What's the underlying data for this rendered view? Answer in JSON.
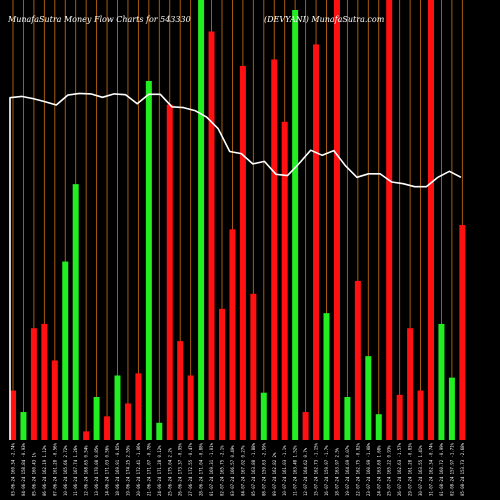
{
  "header": {
    "left": "MunafaSutra  Money Flow  Charts for 543330",
    "right": "(DEVYANI) MunafaSutra.com"
  },
  "chart_data": {
    "type": "bar",
    "title": "MunafaSutra  Money Flow  Charts for 543330",
    "colors": {
      "up": "#22ee22",
      "down": "#ff1111",
      "grid": "#b8650f",
      "line": "#ffffff",
      "background": "#000000"
    },
    "categories": [
      "03-06-24 160.34 -2.74%",
      "04-06-24 158.84 -0.93%",
      "05-06-24 160.43 1%",
      "06-06-24 162.19 1.12%",
      "07-06-24 161.28 -0.56%",
      "10-06-24 165.66 2.72%",
      "11-06-24 167.74 1.26%",
      "12-06-24 168.65 0.54%",
      "13-06-24 170.08 0.85%",
      "14-06-24 171.03 0.56%",
      "18-06-24 169.91 -0.65%",
      "19-06-24 174.25 2.55%",
      "20-06-24 172.41 -1.06%",
      "21-06-24 171.07 -0.78%",
      "24-06-24 171.28 0.12%",
      "25-06-24 175.04 2.2%",
      "26-06-24 173.37 -0.95%",
      "27-06-24 172.55 -0.47%",
      "28-06-24 171.04 -0.88%",
      "01-07-24 169.31 -1.01%",
      "02-07-24 165.75 -2.1%",
      "03-07-24 166.57 0.49%",
      "04-07-24 167.02 0.27%",
      "05-07-24 163.88 -1.88%",
      "08-07-24 159.63 -2.59%",
      "09-07-24 162.82 2%",
      "10-07-24 161.03 -1.1%",
      "11-07-24 163.48 1.52%",
      "12-07-24 164.62 0.7%",
      "15-07-24 162.73 -1.15%",
      "16-07-24 159.97 -1.7%",
      "18-07-24 163.97 2.5%",
      "19-07-24 164.09 0.07%",
      "22-07-24 162.75 -0.82%",
      "23-07-24 160.99 -1.08%",
      "24-07-24 163.69 1.68%",
      "25-07-24 165.22 0.93%",
      "26-07-24 162.63 -1.57%",
      "29-07-24 161.28 -0.83%",
      "30-07-24 163.55 1.41%",
      "31-07-24 162.34 -0.74%",
      "01-08-24 160.72 -0.99%",
      "02-08-24 157.97 -1.71%",
      "05-08-24 153.73 -2.68%"
    ],
    "directions": [
      "down",
      "up",
      "down",
      "down",
      "down",
      "up",
      "up",
      "down",
      "up",
      "down",
      "up",
      "down",
      "down",
      "up",
      "up",
      "down",
      "down",
      "down",
      "up",
      "down",
      "down",
      "down",
      "down",
      "down",
      "up",
      "down",
      "down",
      "up",
      "down",
      "down",
      "up",
      "down",
      "up",
      "down",
      "up",
      "up",
      "down",
      "down",
      "down",
      "down",
      "down",
      "up",
      "up",
      "down"
    ],
    "values": [
      11.5,
      6.5,
      26,
      27,
      18.5,
      41.5,
      59.5,
      2,
      10,
      5.5,
      15,
      8.5,
      15.5,
      83.5,
      4,
      78,
      23,
      15,
      104,
      95,
      30.5,
      49,
      87,
      34,
      11,
      88.5,
      74,
      100,
      6.5,
      92,
      29.5,
      104,
      10,
      37,
      19.5,
      6,
      104,
      10.5,
      26,
      11.5,
      104,
      27,
      14.5,
      50
    ],
    "line": [
      79.6,
      79.9,
      79.4,
      78.7,
      77.9,
      80.2,
      80.6,
      80.5,
      79.7,
      80.5,
      80.3,
      78.2,
      80.4,
      80.4,
      77.5,
      77.3,
      76.6,
      75.1,
      72.4,
      67.1,
      66.6,
      64.2,
      64.8,
      61.8,
      61.5,
      64.3,
      67.4,
      66.2,
      67.3,
      63.8,
      61.1,
      61.9,
      61.9,
      60.0,
      59.6,
      58.9,
      58.9,
      61.1,
      62.5,
      61.1
    ]
  }
}
